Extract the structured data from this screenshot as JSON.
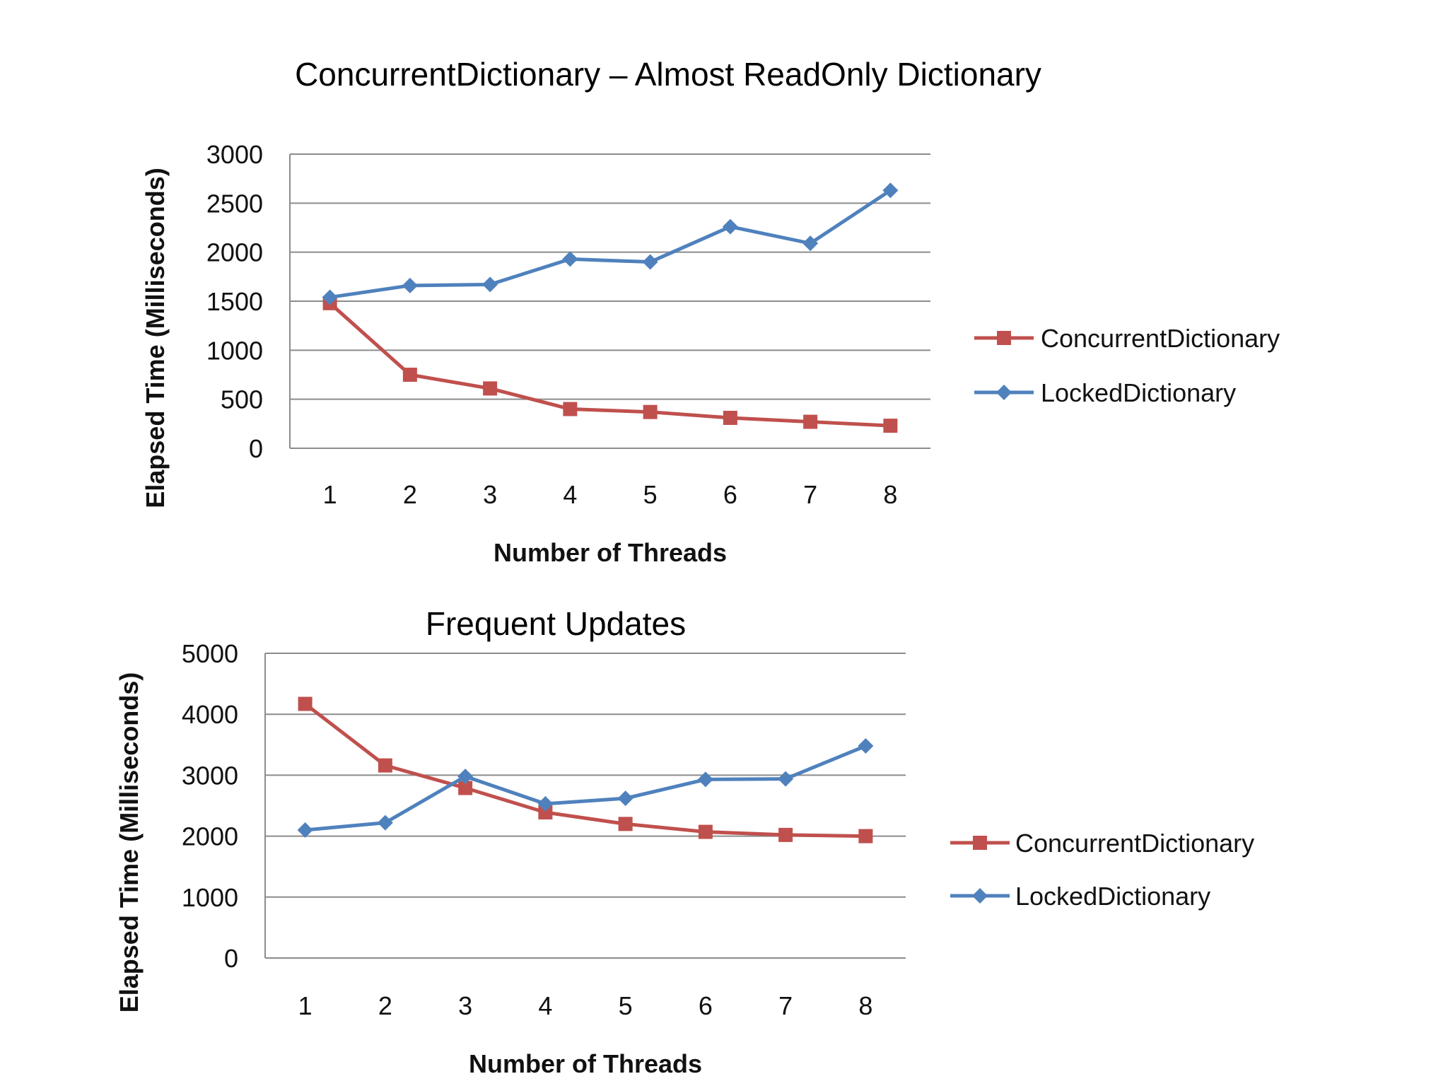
{
  "page": {
    "title": "ConcurrentDictionary – Almost ReadOnly Dictionary"
  },
  "colors": {
    "concurrent": "#c0504d",
    "locked": "#4f81bd",
    "grid": "#8c8c8c"
  },
  "chart_data": [
    {
      "type": "line",
      "title": "",
      "xlabel": "Number of Threads",
      "ylabel": "Elapsed Time (Milliseconds)",
      "categories": [
        "1",
        "2",
        "3",
        "4",
        "5",
        "6",
        "7",
        "8"
      ],
      "ylim": [
        0,
        3000
      ],
      "yticks": [
        "0",
        "500",
        "1000",
        "1500",
        "2000",
        "2500",
        "3000"
      ],
      "grid": true,
      "legend": "right",
      "series": [
        {
          "name": "ConcurrentDictionary",
          "marker": "square",
          "values": [
            1480,
            750,
            610,
            400,
            370,
            310,
            270,
            230
          ]
        },
        {
          "name": "LockedDictionary",
          "marker": "diamond",
          "values": [
            1540,
            1660,
            1670,
            1930,
            1900,
            2260,
            2090,
            2630
          ]
        }
      ]
    },
    {
      "type": "line",
      "title": "Frequent Updates",
      "xlabel": "Number of Threads",
      "ylabel": "Elapsed Time (Milliseconds)",
      "categories": [
        "1",
        "2",
        "3",
        "4",
        "5",
        "6",
        "7",
        "8"
      ],
      "ylim": [
        0,
        5000
      ],
      "yticks": [
        "0",
        "1000",
        "2000",
        "3000",
        "4000",
        "5000"
      ],
      "grid": true,
      "legend": "right",
      "series": [
        {
          "name": "ConcurrentDictionary",
          "marker": "square",
          "values": [
            4170,
            3160,
            2790,
            2390,
            2200,
            2070,
            2020,
            2000
          ]
        },
        {
          "name": "LockedDictionary",
          "marker": "diamond",
          "values": [
            2100,
            2220,
            2980,
            2530,
            2620,
            2930,
            2940,
            3480
          ]
        }
      ]
    }
  ]
}
